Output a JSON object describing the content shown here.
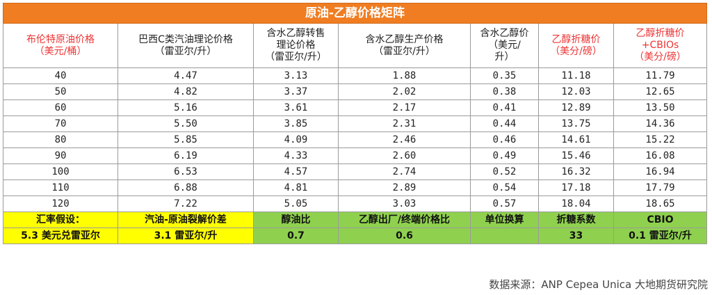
{
  "title": "原油-乙醇价格矩阵",
  "headers": [
    {
      "text": "布伦特原油价格\n（美元/桶）",
      "red": true
    },
    {
      "text": "巴西C类汽油理论价格\n（雷亚尔/升）",
      "red": false
    },
    {
      "text": "含水乙醇转售\n理论价格\n（雷亚尔/升）",
      "red": false
    },
    {
      "text": "含水乙醇生产价格\n（雷亚尔/升）",
      "red": false
    },
    {
      "text": "含水乙醇价\n（美元/\n升）",
      "red": false
    },
    {
      "text": "乙醇折糖价\n（美分/磅）",
      "red": true
    },
    {
      "text": "乙醇折糖价\n+CBIOs\n（美分/磅）",
      "red": true
    }
  ],
  "rows": [
    [
      "40",
      "4.47",
      "3.13",
      "1.88",
      "0.35",
      "11.18",
      "11.79"
    ],
    [
      "50",
      "4.82",
      "3.37",
      "2.02",
      "0.38",
      "12.03",
      "12.65"
    ],
    [
      "60",
      "5.16",
      "3.61",
      "2.17",
      "0.41",
      "12.89",
      "13.50"
    ],
    [
      "70",
      "5.50",
      "3.85",
      "2.31",
      "0.44",
      "13.75",
      "14.36"
    ],
    [
      "80",
      "5.85",
      "4.09",
      "2.46",
      "0.46",
      "14.61",
      "15.22"
    ],
    [
      "90",
      "6.19",
      "4.33",
      "2.60",
      "0.49",
      "15.46",
      "16.08"
    ],
    [
      "100",
      "6.53",
      "4.57",
      "2.74",
      "0.52",
      "16.32",
      "16.94"
    ],
    [
      "110",
      "6.88",
      "4.81",
      "2.89",
      "0.54",
      "17.18",
      "17.79"
    ],
    [
      "120",
      "7.22",
      "5.05",
      "3.03",
      "0.57",
      "18.04",
      "18.65"
    ]
  ],
  "footer_labels": [
    "汇率假设：",
    "汽油-原油裂解价差",
    "醇油比",
    "乙醇出厂/终端价格比",
    "单位换算",
    "折糖系数",
    "CBIO"
  ],
  "footer_values": [
    "5.3 美元兑雷亚尔",
    "3.1 雷亚尔/升",
    "0.7",
    "0.6",
    "",
    "33",
    "0.1 雷亚尔/升"
  ],
  "footer_colors": [
    "yellow",
    "yellow",
    "green",
    "green",
    "green",
    "green",
    "green"
  ],
  "colors": {
    "title_bg": "#f07d22",
    "red_text": "#ee3333",
    "yellow": "#ffff00",
    "green": "#8fd14f"
  },
  "source": "数据来源：ANP Cepea Unica 大地期货研究院"
}
